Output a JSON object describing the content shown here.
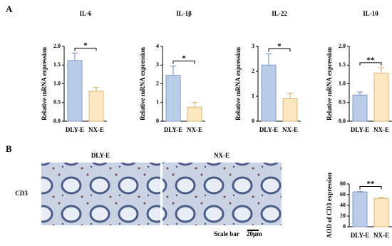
{
  "panel_labels": [
    "A",
    "B"
  ],
  "micrographs": {
    "titles": [
      "DLY-E",
      "NX-E"
    ],
    "row_label": "CD3",
    "scale_bar": "Scale bar",
    "scale_length": "20μm"
  },
  "chart_data": [
    {
      "type": "bar",
      "title": "IL-6",
      "y_label": "Relative mRNA expression",
      "categories": [
        "DLY-E",
        "NX-E"
      ],
      "values": [
        1.62,
        0.8
      ],
      "errors": [
        0.2,
        0.1
      ],
      "colors": [
        "#b9cde8",
        "#fbe7bf"
      ],
      "significance": "*",
      "ylim": [
        0,
        2
      ],
      "yticks": [
        {
          "value": 0,
          "label": "0.0"
        },
        0.5,
        {
          "value": 1,
          "label": "1.0"
        },
        1.5,
        {
          "value": 2,
          "label": "2.0"
        }
      ]
    },
    {
      "type": "bar",
      "title": "IL-1β",
      "y_label": "Relative mRNA expression",
      "categories": [
        "DLY-E",
        "NX-E"
      ],
      "values": [
        2.45,
        0.75
      ],
      "errors": [
        0.5,
        0.25
      ],
      "colors": [
        "#b9cde8",
        "#fbe7bf"
      ],
      "significance": "*",
      "ylim": [
        0,
        4
      ],
      "yticks": [
        0,
        1,
        2,
        3,
        4
      ]
    },
    {
      "type": "bar",
      "title": "IL-22",
      "y_label": "Relative mRNA expression",
      "categories": [
        "DLY-E",
        "NX-E"
      ],
      "values": [
        2.25,
        0.9
      ],
      "errors": [
        0.45,
        0.22
      ],
      "colors": [
        "#b9cde8",
        "#fbe7bf"
      ],
      "significance": "*",
      "ylim": [
        0,
        3
      ],
      "yticks": [
        0,
        1,
        2,
        3
      ]
    },
    {
      "type": "bar",
      "title": "IL-10",
      "y_label": "Relative mRNA expression",
      "categories": [
        "DLY-E",
        "NX-E"
      ],
      "values": [
        0.7,
        1.28
      ],
      "errors": [
        0.08,
        0.15
      ],
      "colors": [
        "#b9cde8",
        "#fbe7bf"
      ],
      "significance": "**",
      "ylim": [
        0,
        2
      ],
      "yticks": [
        {
          "value": 0,
          "label": "0.0"
        },
        0.5,
        {
          "value": 1,
          "label": "1.0"
        },
        1.5,
        {
          "value": 2,
          "label": "2.0"
        }
      ]
    },
    {
      "type": "bar",
      "y_label": "AOD of CD3 expression",
      "categories": [
        "DLY-E",
        "NX-E"
      ],
      "values": [
        65,
        53
      ],
      "errors": [
        1,
        2
      ],
      "colors": [
        "#b9cde8",
        "#fbe7bf"
      ],
      "significance": "**",
      "ylim": [
        0,
        80
      ],
      "yticks": [
        0,
        20,
        40,
        60,
        80
      ]
    }
  ]
}
